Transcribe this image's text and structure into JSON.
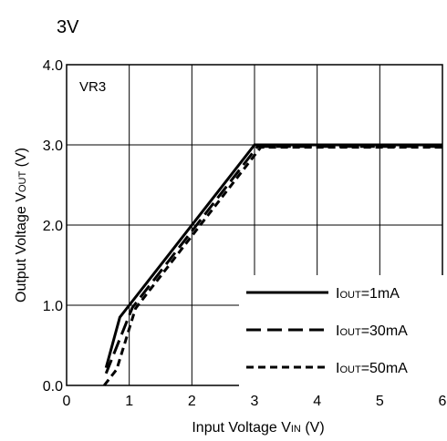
{
  "chart_data": {
    "type": "line",
    "title": "3V",
    "panel_label": "VR3",
    "xlabel": "Input Voltage VIN (V)",
    "ylabel": "Output Voltage VOUT (V)",
    "xlim": [
      0,
      6
    ],
    "ylim": [
      0,
      4
    ],
    "x_ticks": [
      "0",
      "1",
      "2",
      "3",
      "4",
      "5",
      "6"
    ],
    "y_ticks": [
      "0.0",
      "1.0",
      "2.0",
      "3.0",
      "4.0"
    ],
    "grid": true,
    "legend_position": "lower-right",
    "series": [
      {
        "name": "IOUT=1mA",
        "style": "solid",
        "x": [
          0.63,
          0.85,
          1.0,
          3.0,
          6.0
        ],
        "y": [
          0.22,
          0.85,
          1.0,
          3.0,
          3.0
        ]
      },
      {
        "name": "IOUT=30mA",
        "style": "dashed",
        "x": [
          0.63,
          1.05,
          3.05,
          6.0
        ],
        "y": [
          0.15,
          0.97,
          2.98,
          2.98
        ]
      },
      {
        "name": "IOUT=50mA",
        "style": "dotted",
        "x": [
          0.6,
          0.8,
          1.1,
          3.1,
          6.0
        ],
        "y": [
          0.0,
          0.2,
          0.96,
          2.97,
          2.97
        ]
      }
    ]
  }
}
